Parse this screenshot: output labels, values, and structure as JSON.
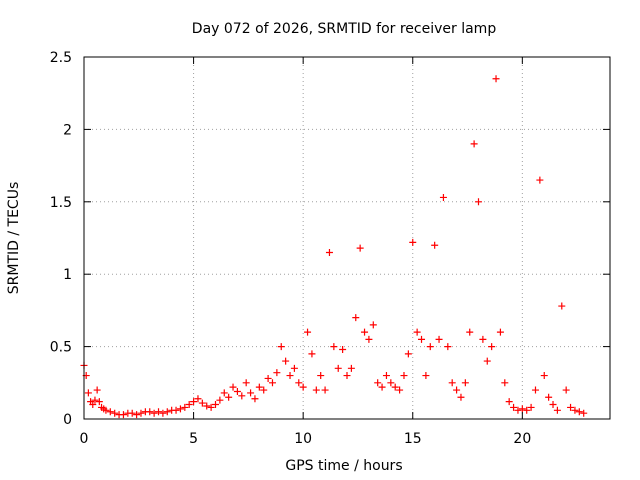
{
  "chart_data": {
    "type": "scatter",
    "title": "Day 072 of 2026, SRMTID for receiver lamp",
    "xlabel": "GPS time / hours",
    "ylabel": "SRMTID / TECUs",
    "xlim": [
      0,
      24
    ],
    "ylim": [
      0,
      2.5
    ],
    "xticks": [
      0,
      5,
      10,
      15,
      20
    ],
    "xtick_labels": [
      "0",
      "5",
      "10",
      "15",
      "20"
    ],
    "yticks": [
      0,
      0.5,
      1,
      1.5,
      2,
      2.5
    ],
    "ytick_labels": [
      "0",
      "0.5",
      "1",
      "1.5",
      "2",
      "2.5"
    ],
    "grid": true,
    "marker": "+",
    "series_color": "#ff0000",
    "series": [
      {
        "name": "SRMTID",
        "x": [
          0.0,
          0.1,
          0.2,
          0.3,
          0.4,
          0.5,
          0.6,
          0.7,
          0.8,
          0.9,
          1.0,
          1.2,
          1.4,
          1.6,
          1.8,
          2.0,
          2.2,
          2.4,
          2.6,
          2.8,
          3.0,
          3.2,
          3.4,
          3.6,
          3.8,
          4.0,
          4.2,
          4.4,
          4.6,
          4.8,
          5.0,
          5.2,
          5.4,
          5.6,
          5.8,
          6.0,
          6.2,
          6.4,
          6.6,
          6.8,
          7.0,
          7.2,
          7.4,
          7.6,
          7.8,
          8.0,
          8.2,
          8.4,
          8.6,
          8.8,
          9.0,
          9.2,
          9.4,
          9.6,
          9.8,
          10.0,
          10.2,
          10.4,
          10.6,
          10.8,
          11.0,
          11.2,
          11.4,
          11.6,
          11.8,
          12.0,
          12.2,
          12.4,
          12.6,
          12.8,
          13.0,
          13.2,
          13.4,
          13.6,
          13.8,
          14.0,
          14.2,
          14.4,
          14.6,
          14.8,
          15.0,
          15.2,
          15.4,
          15.6,
          15.8,
          16.0,
          16.2,
          16.4,
          16.6,
          16.8,
          17.0,
          17.2,
          17.4,
          17.6,
          17.8,
          18.0,
          18.2,
          18.4,
          18.6,
          18.8,
          19.0,
          19.2,
          19.4,
          19.6,
          19.8,
          20.0,
          20.2,
          20.4,
          20.6,
          20.8,
          21.0,
          21.2,
          21.4,
          21.6,
          21.8,
          22.0,
          22.2,
          22.4,
          22.6,
          22.8
        ],
        "y": [
          0.37,
          0.3,
          0.18,
          0.12,
          0.1,
          0.13,
          0.2,
          0.12,
          0.08,
          0.07,
          0.06,
          0.05,
          0.04,
          0.03,
          0.03,
          0.04,
          0.04,
          0.03,
          0.04,
          0.05,
          0.05,
          0.04,
          0.05,
          0.04,
          0.05,
          0.06,
          0.06,
          0.07,
          0.08,
          0.1,
          0.12,
          0.14,
          0.11,
          0.09,
          0.08,
          0.1,
          0.13,
          0.18,
          0.15,
          0.22,
          0.19,
          0.16,
          0.25,
          0.18,
          0.14,
          0.22,
          0.2,
          0.28,
          0.25,
          0.32,
          0.5,
          0.4,
          0.3,
          0.35,
          0.25,
          0.22,
          0.6,
          0.45,
          0.2,
          0.3,
          0.2,
          1.15,
          0.5,
          0.35,
          0.48,
          0.3,
          0.35,
          0.7,
          1.18,
          0.6,
          0.55,
          0.65,
          0.25,
          0.22,
          0.3,
          0.25,
          0.22,
          0.2,
          0.3,
          0.45,
          1.22,
          0.6,
          0.55,
          0.3,
          0.5,
          1.2,
          0.55,
          1.53,
          0.5,
          0.25,
          0.2,
          0.15,
          0.25,
          0.6,
          1.9,
          1.5,
          0.55,
          0.4,
          0.5,
          2.35,
          0.6,
          0.25,
          0.12,
          0.08,
          0.06,
          0.07,
          0.06,
          0.08,
          0.2,
          1.65,
          0.3,
          0.15,
          0.1,
          0.06,
          0.78,
          0.2,
          0.08,
          0.06,
          0.05,
          0.04
        ]
      }
    ]
  }
}
